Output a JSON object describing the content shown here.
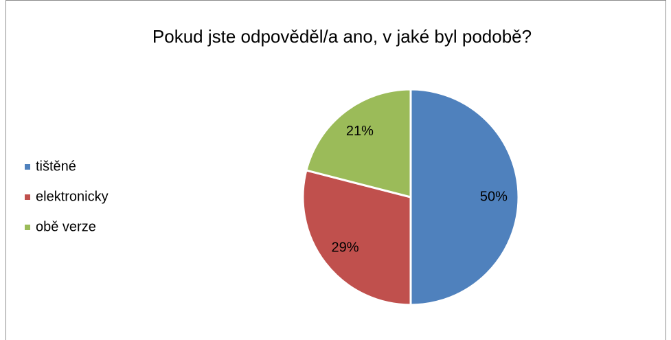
{
  "chart_data": {
    "type": "pie",
    "title": "Pokud jste odpověděl/a ano, v jaké byl podobě?",
    "categories": [
      "tištěné",
      "elektronicky",
      "obě verze"
    ],
    "values": [
      50,
      29,
      21
    ],
    "value_labels": [
      "50%",
      "29%",
      "21%"
    ],
    "colors": [
      "#4f81bd",
      "#c0504d",
      "#9bbb59"
    ]
  }
}
